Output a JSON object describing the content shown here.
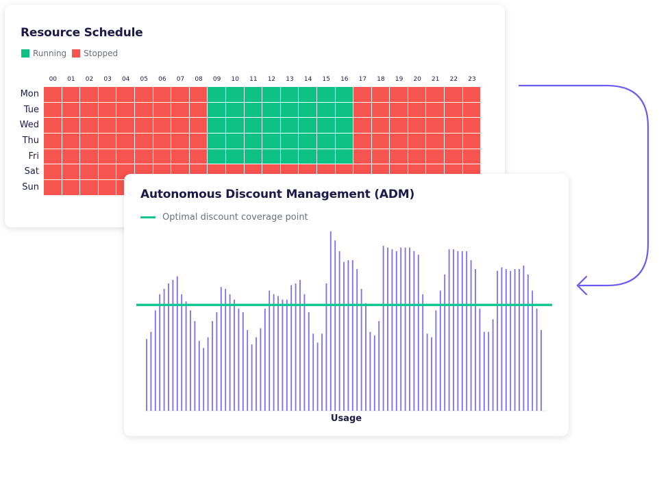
{
  "colors": {
    "running": "#0dc184",
    "stopped": "#f5544f",
    "bars": "#7a6ef2",
    "threshold": "#13c58f",
    "arrow": "#6a5cf2"
  },
  "schedule": {
    "title": "Resource Schedule",
    "legend": [
      {
        "label": "Running",
        "state": "running"
      },
      {
        "label": "Stopped",
        "state": "stopped"
      }
    ],
    "hours": [
      "00",
      "01",
      "02",
      "03",
      "04",
      "05",
      "06",
      "07",
      "08",
      "09",
      "10",
      "11",
      "12",
      "13",
      "14",
      "15",
      "16",
      "17",
      "18",
      "19",
      "20",
      "21",
      "22",
      "23"
    ],
    "days": [
      "Mon",
      "Tue",
      "Wed",
      "Thu",
      "Fri",
      "Sat",
      "Sun"
    ],
    "running_days": [
      "Mon",
      "Tue",
      "Wed",
      "Thu",
      "Fri"
    ],
    "running_hours": [
      "09",
      "10",
      "11",
      "12",
      "13",
      "14",
      "15",
      "16"
    ]
  },
  "adm": {
    "title": "Autonomous Discount Management (ADM)",
    "legend_label": "Optimal discount coverage point"
  },
  "chart_data": {
    "type": "bar",
    "xlabel": "Usage",
    "ylabel": "",
    "ylim": [
      0,
      100
    ],
    "grid": false,
    "threshold": {
      "label": "Optimal discount coverage point",
      "value": 59
    },
    "values": [
      40,
      44,
      56,
      65,
      68,
      71,
      73,
      75,
      65,
      61,
      56,
      50,
      39,
      35,
      41,
      50,
      55,
      69,
      68,
      65,
      62,
      57,
      55,
      45,
      37,
      41,
      46,
      57,
      67,
      65,
      64,
      62,
      62,
      70,
      71,
      73,
      65,
      55,
      43,
      38,
      43,
      71,
      100,
      95,
      89,
      83,
      84,
      84,
      79,
      68,
      60,
      44,
      42,
      50,
      92,
      91,
      90,
      89,
      91,
      91,
      91,
      89,
      87,
      65,
      43,
      41,
      56,
      67,
      76,
      90,
      90,
      89,
      89,
      89,
      84,
      79,
      57,
      44,
      44,
      51,
      78,
      80,
      79,
      78,
      79,
      79,
      81,
      76,
      67,
      57,
      45
    ]
  }
}
